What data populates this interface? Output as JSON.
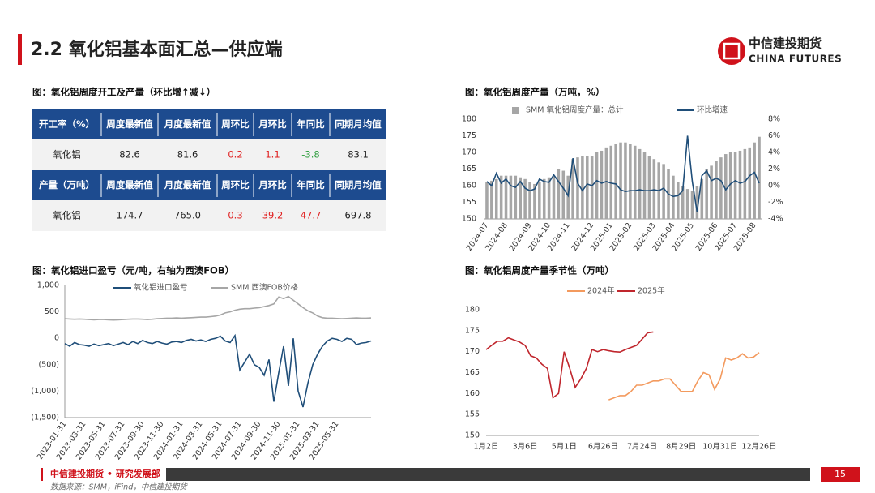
{
  "header": {
    "title": "2.2 氧化铝基本面汇总—供应端",
    "logo_cn": "中信建投期货",
    "logo_en": "CHINA FUTURES"
  },
  "table": {
    "caption": "图：氧化铝周度开工及产量（环比增↑减↓）",
    "header_color": "#1d4b8f",
    "rows": [
      {
        "header": true,
        "cells": [
          "开工率（%）",
          "周度最新值",
          "月度最新值",
          "周环比",
          "月环比",
          "年同比",
          "同期月均值"
        ]
      },
      {
        "header": false,
        "cells": [
          "氧化铝",
          "82.6",
          "81.6",
          {
            "text": "0.2",
            "color": "#e02020"
          },
          {
            "text": "1.1",
            "color": "#e02020"
          },
          {
            "text": "-3.8",
            "color": "#2e9e3e"
          },
          "83.1"
        ]
      },
      {
        "header": true,
        "cells": [
          "产量（万吨）",
          "周度最新值",
          "月度最新值",
          "周环比",
          "月环比",
          "年同比",
          "同期月均值"
        ]
      },
      {
        "header": false,
        "cells": [
          "氧化铝",
          "174.7",
          "765.0",
          {
            "text": "0.3",
            "color": "#e02020"
          },
          {
            "text": "39.2",
            "color": "#e02020"
          },
          {
            "text": "47.7",
            "color": "#e02020"
          },
          "697.8"
        ]
      }
    ]
  },
  "chart_data": [
    {
      "type": "combo",
      "title": "图：氧化铝周度产量（万吨，%）",
      "categories": [
        "2024-07",
        null,
        null,
        null,
        "2024-08",
        null,
        null,
        null,
        null,
        "2024-09",
        null,
        null,
        null,
        "2024-10",
        null,
        null,
        null,
        "2024-11",
        null,
        null,
        null,
        null,
        "2024-12",
        null,
        null,
        null,
        "2025-01",
        null,
        null,
        null,
        "2025-02",
        null,
        null,
        null,
        null,
        "2025-03",
        null,
        null,
        null,
        "2025-04",
        null,
        null,
        null,
        "2025-05",
        null,
        null,
        null,
        null,
        "2025-06",
        null,
        null,
        null,
        "2025-07",
        null,
        null,
        null,
        "2025-08",
        null
      ],
      "series": [
        {
          "name": "SMM 氧化铝周度产量：总计",
          "type": "bar",
          "color": "#a6a6a6",
          "values": [
            161,
            161.5,
            162,
            163,
            163,
            163,
            163,
            162.5,
            162,
            161,
            160.5,
            161,
            162,
            162.5,
            163,
            165,
            164.5,
            163,
            168,
            168.5,
            169,
            169,
            169,
            170,
            170.5,
            171.5,
            172,
            172.5,
            173,
            173,
            172.5,
            172,
            171,
            170,
            169,
            168,
            167,
            166.5,
            165,
            163,
            161,
            160,
            159,
            158.5,
            160,
            162,
            165,
            166,
            167.5,
            168.5,
            169.5,
            170,
            170,
            170.5,
            171,
            171.5,
            173,
            174.7
          ]
        },
        {
          "name": "环比增速",
          "type": "line",
          "axis": "y2",
          "color": "#1f4e79",
          "values": [
            0.5,
            0,
            1.5,
            0.3,
            0.8,
            0,
            -0.2,
            0.5,
            -0.3,
            -0.6,
            -0.4,
            0.8,
            0.5,
            0.4,
            1.3,
            0.5,
            -0.3,
            -1.2,
            3.3,
            0.3,
            -0.6,
            0.2,
            0,
            0.6,
            0.3,
            0.5,
            0.3,
            0.2,
            -0.5,
            -0.7,
            -0.6,
            -0.6,
            -0.5,
            -0.6,
            -0.6,
            -0.5,
            -0.6,
            -0.3,
            -1,
            -1.3,
            -1.2,
            -0.6,
            6,
            0.5,
            -3.2,
            1.2,
            1.8,
            0.6,
            0.9,
            0.6,
            -0.5,
            0.2,
            0.6,
            0.3,
            0.5,
            1.2,
            1.6,
            0.3
          ]
        }
      ],
      "ylim": [
        150,
        180
      ],
      "yticks": [
        150,
        155,
        160,
        165,
        170,
        175,
        180
      ],
      "y2lim": [
        -4,
        8
      ],
      "y2ticks": [
        {
          "value": -4,
          "label": "-4%"
        },
        {
          "value": -2,
          "label": "-2%"
        },
        {
          "value": 0,
          "label": "0%"
        },
        {
          "value": 2,
          "label": "2%"
        },
        {
          "value": 4,
          "label": "4%"
        },
        {
          "value": 6,
          "label": "6%"
        },
        {
          "value": 8,
          "label": "8%"
        }
      ],
      "grid": false
    },
    {
      "type": "line",
      "title": "图：氧化铝进口盈亏（元/吨，右轴为西澳FOB）",
      "categories": [
        "2023-01-31",
        null,
        null,
        null,
        "2023-03-31",
        null,
        null,
        null,
        "2023-05-31",
        null,
        null,
        null,
        "2023-07-31",
        null,
        null,
        null,
        "2023-09-30",
        null,
        null,
        null,
        "2023-11-30",
        null,
        null,
        null,
        "2024-01-31",
        null,
        null,
        null,
        "2024-03-31",
        null,
        null,
        null,
        "2024-05-31",
        null,
        null,
        null,
        "2024-07-31",
        null,
        null,
        null,
        "2024-09-30",
        null,
        null,
        null,
        "2024-11-30",
        null,
        null,
        null,
        "2025-01-31",
        null,
        null,
        null,
        "2025-03-31",
        null,
        null,
        null,
        "2025-05-31",
        null,
        null,
        null,
        null,
        null,
        null,
        null
      ],
      "series": [
        {
          "name": "氧化铝进口盈亏",
          "color": "#1f4e79",
          "values": [
            -100,
            -150,
            -80,
            -120,
            -130,
            -150,
            -110,
            -140,
            -120,
            -100,
            -140,
            -110,
            -80,
            -120,
            -60,
            -100,
            -40,
            -80,
            -100,
            -60,
            -90,
            -110,
            -70,
            -60,
            -80,
            -40,
            -20,
            -50,
            -30,
            -60,
            -20,
            0,
            40,
            -50,
            -80,
            50,
            -600,
            -450,
            -300,
            -500,
            -550,
            -700,
            -400,
            -1200,
            -650,
            -150,
            -900,
            0,
            -1000,
            -1300,
            -850,
            -500,
            -300,
            -150,
            -50,
            0,
            -20,
            -60,
            0,
            -20,
            -120,
            -90,
            -80,
            -50
          ]
        },
        {
          "name": "SMM 西澳FOB价格",
          "color": "#a6a6a6",
          "values": [
            370,
            365,
            360,
            365,
            360,
            355,
            350,
            355,
            355,
            350,
            345,
            350,
            355,
            360,
            365,
            365,
            360,
            355,
            360,
            370,
            375,
            380,
            380,
            385,
            380,
            385,
            390,
            395,
            400,
            400,
            410,
            420,
            440,
            480,
            500,
            530,
            550,
            560,
            560,
            570,
            580,
            600,
            620,
            650,
            780,
            750,
            790,
            720,
            650,
            580,
            520,
            480,
            420,
            390,
            380,
            380,
            375,
            370,
            375,
            380,
            385,
            380,
            380,
            385
          ]
        }
      ],
      "ylim": [
        -1500,
        1000
      ],
      "yticks": [
        {
          "value": -1500,
          "label": "(1,500)"
        },
        {
          "value": -1000,
          "label": "(1,000)"
        },
        {
          "value": -500,
          "label": "(500)"
        },
        0,
        500,
        {
          "value": 1000,
          "label": "1,000"
        }
      ],
      "grid": false
    },
    {
      "type": "line",
      "title": "图：氧化铝周度产量季节性（万吨）",
      "categories": [
        "1月2日",
        null,
        null,
        null,
        null,
        null,
        null,
        "3月6日",
        null,
        null,
        null,
        null,
        null,
        null,
        "5月1日",
        null,
        null,
        null,
        null,
        null,
        null,
        "6月26日",
        null,
        null,
        null,
        null,
        null,
        null,
        "7月24日",
        null,
        null,
        null,
        null,
        null,
        null,
        "8月29日",
        null,
        null,
        null,
        null,
        null,
        null,
        "10月31日",
        null,
        null,
        null,
        null,
        null,
        null,
        "12月26日"
      ],
      "series": [
        {
          "name": "2024年",
          "color": "#f39a5e",
          "values": [
            null,
            null,
            null,
            null,
            null,
            null,
            null,
            null,
            null,
            null,
            null,
            null,
            null,
            null,
            null,
            null,
            null,
            null,
            null,
            null,
            null,
            null,
            158.5,
            159,
            159.5,
            159.5,
            160.5,
            162,
            162,
            162.5,
            163,
            163,
            163.5,
            163.5,
            162,
            160.5,
            160.5,
            160.5,
            163,
            165,
            164.5,
            161,
            163.5,
            168.5,
            168,
            168.5,
            169.5,
            168.5,
            168.7,
            169.8
          ]
        },
        {
          "name": "2025年",
          "color": "#c0262d",
          "values": [
            170.5,
            171.5,
            172.5,
            172.5,
            173.3,
            172.8,
            172.3,
            171.5,
            169,
            168.5,
            167,
            166,
            159,
            160,
            170,
            166,
            161.5,
            163.5,
            166,
            170.5,
            170,
            170.5,
            170.2,
            170,
            169.9,
            170.5,
            171,
            171.5,
            173,
            174.5,
            174.7,
            null,
            null,
            null,
            null,
            null,
            null,
            null,
            null,
            null,
            null,
            null,
            null,
            null,
            null,
            null,
            null,
            null,
            null,
            null
          ]
        }
      ],
      "ylim": [
        150,
        180
      ],
      "yticks": [
        150,
        155,
        160,
        165,
        170,
        175,
        180
      ],
      "grid": false
    }
  ],
  "footer": {
    "org": "中信建投期货 • 研究发展部",
    "page": "15",
    "source": "数据来源：SMM，iFind，中信建投期货"
  }
}
